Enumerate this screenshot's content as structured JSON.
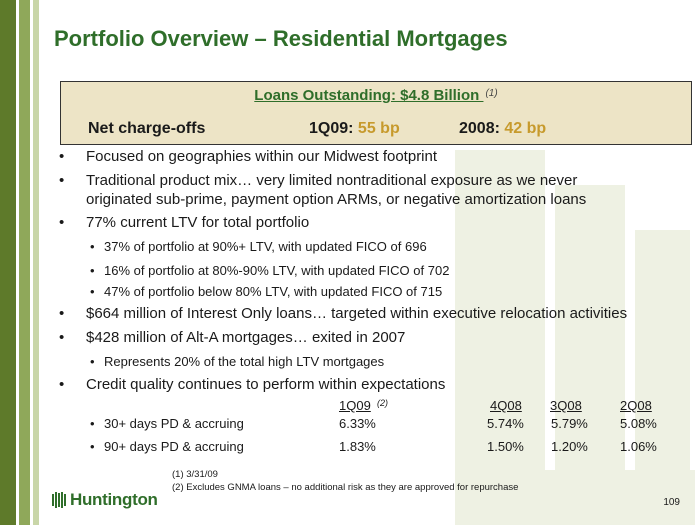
{
  "title": "Portfolio Overview – Residential Mortgages",
  "summary": {
    "loans": "Loans Outstanding: $4.8 Billion ",
    "loans_note": "(1)",
    "chargeoffs_label": "Net charge-offs",
    "q1_label": "1Q09:",
    "q1_value": "55 bp",
    "y2008_label": "2008:",
    "y2008_value": "42 bp"
  },
  "bullets": [
    "Focused on geographies within our Midwest footprint",
    "Traditional product mix… very limited nontraditional exposure as we never",
    "originated sub-prime, payment option ARMs, or negative amortization loans",
    "77% current LTV for total portfolio",
    "$664 million of Interest Only loans… targeted within executive relocation activities",
    "$428 million of Alt-A mortgages… exited in 2007",
    "Credit quality continues to perform within expectations"
  ],
  "sub_bullets": [
    "37% of portfolio at 90%+ LTV, with updated FICO of 696",
    "16% of portfolio at 80%-90% LTV, with updated FICO of 702",
    "47% of portfolio below 80% LTV, with updated FICO of 715",
    "Represents 20% of the total high LTV mortgages"
  ],
  "table": {
    "headers": [
      "1Q09",
      "4Q08",
      "3Q08",
      "2Q08"
    ],
    "header_note": "(2)",
    "rows": [
      {
        "label": "30+ days PD & accruing",
        "values": [
          "6.33%",
          "5.74%",
          "5.79%",
          "5.08%"
        ]
      },
      {
        "label": "90+ days PD & accruing",
        "values": [
          "1.83%",
          "1.50%",
          "1.20%",
          "1.06%"
        ]
      }
    ]
  },
  "footnotes": [
    "(1)  3/31/09",
    "(2)  Excludes GNMA loans – no additional risk as they are approved for repurchase"
  ],
  "logo_text": "Huntington",
  "page_number": "109",
  "colors": {
    "title_green": "#2f6e2a",
    "highlight_gold": "#c79a2c",
    "box_fill": "#ede4c6"
  }
}
